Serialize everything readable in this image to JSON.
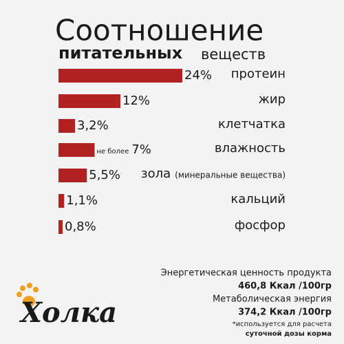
{
  "chart_data": {
    "type": "bar",
    "orientation": "horizontal",
    "title": "Соотношение",
    "subtitle_bold": "питательных",
    "subtitle": "веществ",
    "categories": [
      "протеин",
      "жир",
      "клетчатка",
      "влажность",
      "зола",
      "кальций",
      "фосфор"
    ],
    "category_notes": [
      null,
      null,
      null,
      null,
      "(минеральные вещества)",
      null,
      null
    ],
    "values": [
      24,
      12,
      3.2,
      7,
      5.5,
      1.1,
      0.8
    ],
    "value_labels": [
      "24%",
      "12%",
      "3,2%",
      "7%",
      "5,5%",
      "1,1%",
      "0,8%"
    ],
    "value_label_prefixes": [
      null,
      null,
      null,
      "не более",
      null,
      null,
      null
    ],
    "color": "#b22222",
    "footer": [
      "Энергетическая ценность продукта",
      "460,8 Ккал /100гр",
      "Метаболическая энергия",
      "374,2 Ккал /100гр",
      "*используется для расчета",
      "суточной дозы корма"
    ],
    "brand": "Холка"
  }
}
